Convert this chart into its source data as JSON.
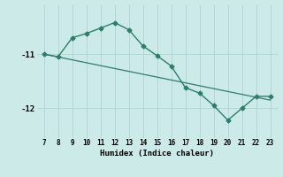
{
  "x": [
    7,
    8,
    9,
    10,
    11,
    12,
    13,
    14,
    15,
    16,
    17,
    18,
    19,
    20,
    21,
    22,
    23
  ],
  "y": [
    -11.0,
    -11.05,
    -10.7,
    -10.62,
    -10.52,
    -10.42,
    -10.55,
    -10.85,
    -11.03,
    -11.22,
    -11.62,
    -11.72,
    -11.95,
    -12.22,
    -12.0,
    -11.78,
    -11.78
  ],
  "trend_x": [
    7,
    23
  ],
  "trend_y": [
    -11.0,
    -11.85
  ],
  "xlabel": "Humidex (Indice chaleur)",
  "yticks": [
    -12,
    -11
  ],
  "xticks": [
    7,
    8,
    9,
    10,
    11,
    12,
    13,
    14,
    15,
    16,
    17,
    18,
    19,
    20,
    21,
    22,
    23
  ],
  "xlim": [
    6.5,
    23.5
  ],
  "ylim": [
    -12.55,
    -10.1
  ],
  "line_color": "#2e7d70",
  "bg_color": "#cceae8",
  "grid_color": "#b0d8d5",
  "marker": "D",
  "marker_size": 2.5,
  "linewidth": 1.0
}
